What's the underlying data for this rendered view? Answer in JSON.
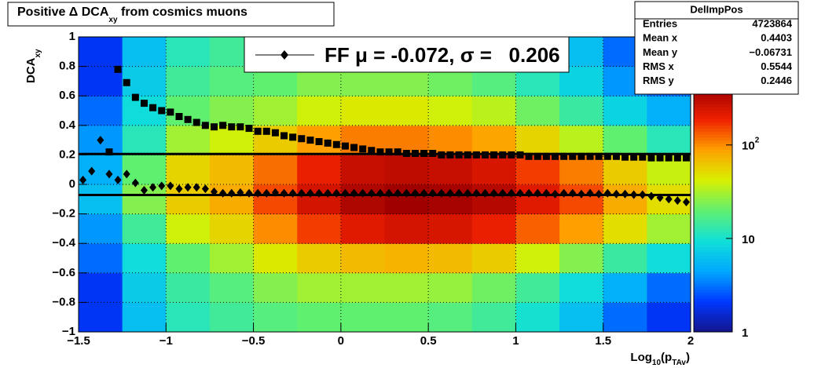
{
  "chart_data": {
    "type": "heatmap",
    "title": [
      "Positive Δ DCA",
      "xy",
      " from cosmics muons"
    ],
    "ylabel": [
      "DCA",
      "xy"
    ],
    "xlabel": [
      "Log",
      "10",
      "(p",
      "TAv",
      ")"
    ],
    "xlim": [
      -1.5,
      2
    ],
    "ylim": [
      -1,
      1
    ],
    "xticks": [
      {
        "value": -1.5,
        "label": "−1.5"
      },
      {
        "value": -1,
        "label": "−1"
      },
      {
        "value": -0.5,
        "label": "−0.5"
      },
      0,
      0.5,
      1,
      1.5,
      2
    ],
    "yticks": [
      {
        "value": -1,
        "label": "−1"
      },
      {
        "value": -0.8,
        "label": "−0.8"
      },
      {
        "value": -0.6,
        "label": "−0.6"
      },
      {
        "value": -0.4,
        "label": "−0.4"
      },
      {
        "value": -0.2,
        "label": "−0.2"
      },
      0,
      0.2,
      0.4,
      0.6,
      0.8,
      1
    ],
    "grid": true,
    "z": {
      "log": true,
      "zlim": [
        1,
        400
      ],
      "zticks": [
        1,
        10,
        {
          "value": 100,
          "label": "10",
          "exponent": "2"
        }
      ],
      "colormap": [
        "#14148c",
        "#0038ff",
        "#00a8ff",
        "#10e0d8",
        "#60f070",
        "#d8f000",
        "#ffa000",
        "#f02000",
        "#a00000"
      ],
      "xbins": [
        -1.5,
        -1.25,
        -1,
        -0.75,
        -0.5,
        -0.25,
        0,
        0.25,
        0.5,
        0.75,
        1,
        1.25,
        1.5,
        1.75,
        2
      ],
      "ybins": [
        -1,
        -0.8,
        -0.6,
        -0.4,
        -0.2,
        0,
        0.2,
        0.4,
        0.6,
        0.8,
        1
      ],
      "values": [
        [
          2,
          6,
          12,
          15,
          18,
          20,
          20,
          20,
          18,
          15,
          10,
          6,
          3,
          2
        ],
        [
          2,
          7,
          14,
          18,
          25,
          30,
          30,
          30,
          28,
          22,
          15,
          9,
          5,
          3
        ],
        [
          3,
          9,
          20,
          30,
          45,
          60,
          70,
          75,
          70,
          60,
          40,
          25,
          14,
          9
        ],
        [
          4,
          15,
          40,
          55,
          100,
          160,
          220,
          250,
          240,
          200,
          130,
          90,
          50,
          30
        ],
        [
          6,
          25,
          60,
          80,
          150,
          250,
          350,
          400,
          380,
          330,
          220,
          150,
          80,
          50
        ],
        [
          5,
          20,
          55,
          70,
          120,
          200,
          280,
          300,
          280,
          240,
          160,
          110,
          60,
          38
        ],
        [
          4,
          12,
          30,
          40,
          60,
          90,
          110,
          110,
          100,
          85,
          55,
          35,
          20,
          12
        ],
        [
          3,
          9,
          20,
          25,
          30,
          40,
          45,
          45,
          40,
          35,
          22,
          14,
          8,
          5
        ],
        [
          2,
          7,
          15,
          18,
          20,
          25,
          25,
          25,
          22,
          18,
          12,
          8,
          4,
          3
        ],
        [
          2,
          6,
          12,
          15,
          18,
          20,
          20,
          20,
          18,
          15,
          10,
          6,
          3,
          2
        ]
      ]
    },
    "x": [
      -1.475,
      -1.425,
      -1.375,
      -1.325,
      -1.275,
      -1.225,
      -1.175,
      -1.125,
      -1.075,
      -1.025,
      -0.975,
      -0.925,
      -0.875,
      -0.825,
      -0.775,
      -0.725,
      -0.675,
      -0.625,
      -0.575,
      -0.525,
      -0.475,
      -0.425,
      -0.375,
      -0.325,
      -0.275,
      -0.225,
      -0.175,
      -0.125,
      -0.075,
      -0.025,
      0.025,
      0.075,
      0.125,
      0.175,
      0.225,
      0.275,
      0.325,
      0.375,
      0.425,
      0.475,
      0.525,
      0.575,
      0.625,
      0.675,
      0.725,
      0.775,
      0.825,
      0.875,
      0.925,
      0.975,
      1.025,
      1.075,
      1.125,
      1.175,
      1.225,
      1.275,
      1.325,
      1.375,
      1.425,
      1.475,
      1.525,
      1.575,
      1.625,
      1.675,
      1.725,
      1.775,
      1.825,
      1.875,
      1.925,
      1.975
    ],
    "series": [
      {
        "marker": "diamond",
        "color": "#000000",
        "values": [
          0.03,
          0.09,
          0.3,
          0.07,
          0.03,
          0.07,
          0.01,
          -0.04,
          -0.02,
          -0.01,
          -0.01,
          -0.03,
          -0.02,
          -0.02,
          -0.03,
          -0.05,
          -0.06,
          -0.06,
          -0.055,
          -0.06,
          -0.06,
          -0.06,
          -0.055,
          -0.06,
          -0.06,
          -0.06,
          -0.06,
          -0.06,
          -0.06,
          -0.06,
          -0.06,
          -0.06,
          -0.06,
          -0.06,
          -0.06,
          -0.06,
          -0.06,
          -0.06,
          -0.06,
          -0.06,
          -0.06,
          -0.06,
          -0.06,
          -0.06,
          -0.06,
          -0.06,
          -0.06,
          -0.06,
          -0.06,
          -0.06,
          -0.06,
          -0.06,
          -0.06,
          -0.06,
          -0.065,
          -0.06,
          -0.06,
          -0.065,
          -0.06,
          -0.065,
          -0.06,
          -0.065,
          -0.065,
          -0.07,
          -0.07,
          -0.08,
          -0.09,
          -0.1,
          -0.11,
          -0.12
        ]
      },
      {
        "marker": "square",
        "color": "#000000",
        "values": [
          null,
          null,
          null,
          0.22,
          0.78,
          0.69,
          0.59,
          0.55,
          0.52,
          0.5,
          0.49,
          0.46,
          0.44,
          0.42,
          0.4,
          0.39,
          0.4,
          0.39,
          0.39,
          0.38,
          0.36,
          0.36,
          0.35,
          0.33,
          0.32,
          0.31,
          0.3,
          0.29,
          0.28,
          0.27,
          0.26,
          0.25,
          0.24,
          0.23,
          0.22,
          0.22,
          0.22,
          0.21,
          0.21,
          0.21,
          0.21,
          0.2,
          0.2,
          0.2,
          0.2,
          0.2,
          0.2,
          0.2,
          0.2,
          0.2,
          0.2,
          0.19,
          0.19,
          0.19,
          0.19,
          0.19,
          0.19,
          0.19,
          0.19,
          0.19,
          0.19,
          0.19,
          0.185,
          0.185,
          0.185,
          0.18,
          0.18,
          0.18,
          0.18,
          0.18
        ]
      }
    ],
    "fit_lines": [
      -0.072,
      0.206
    ],
    "legend_label": "FF μ = -0.072, σ =   0.206",
    "stats": {
      "title": "DelImpPos",
      "rows": [
        {
          "label": "Entries",
          "value": "4723864"
        },
        {
          "label": "Mean x",
          "value": "0.4403"
        },
        {
          "label": "Mean y",
          "value": "−0.06731"
        },
        {
          "label": "RMS x",
          "value": "0.5544"
        },
        {
          "label": "RMS y",
          "value": "0.2446"
        }
      ]
    }
  }
}
